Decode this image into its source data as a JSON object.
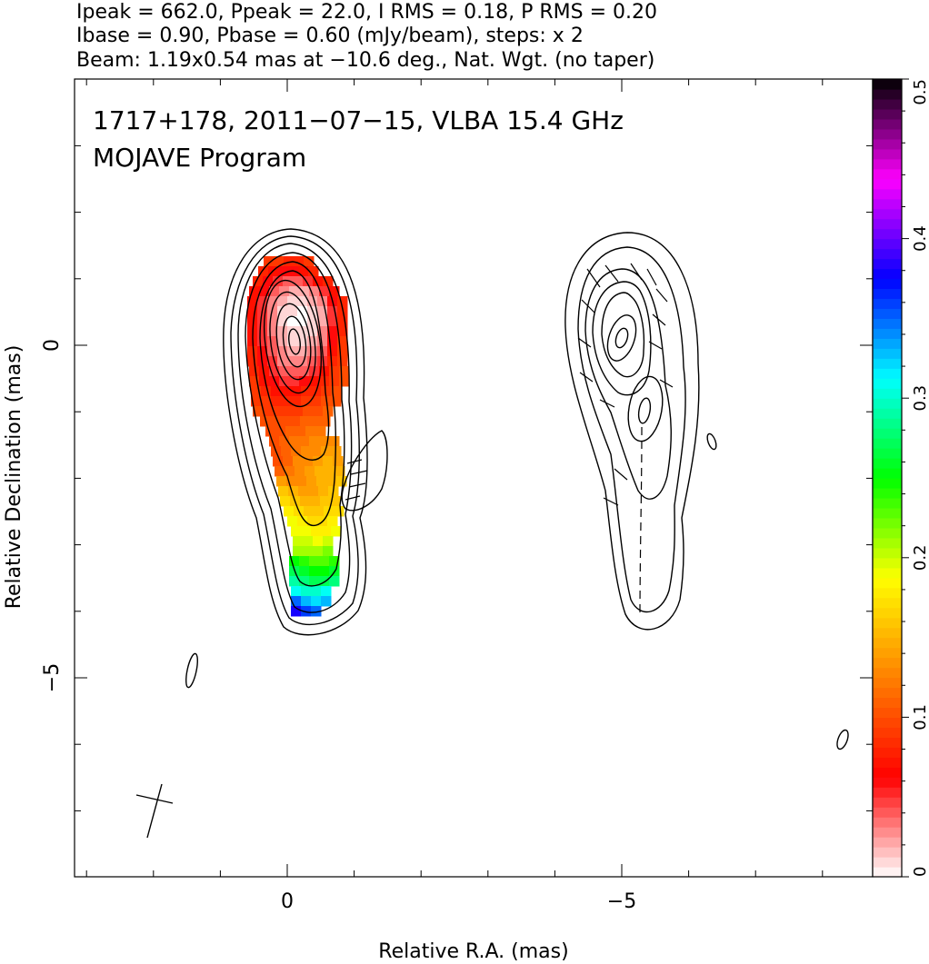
{
  "header": {
    "line1": "Ipeak = 662.0, Ppeak = 22.0, I RMS = 0.18, P RMS = 0.20",
    "line2": "Ibase = 0.90, Pbase = 0.60 (mJy/beam), steps: x 2",
    "line3": "Beam: 1.19x0.54 mas at −10.6 deg., Nat. Wgt. (no taper)"
  },
  "plot_title": {
    "line1": "1717+178, 2011−07−15, VLBA 15.4 GHz",
    "line2": "MOJAVE Program"
  },
  "chart_data": {
    "type": "heatmap",
    "xlabel": "Relative R.A. (mas)",
    "ylabel": "Relative Declination (mas)",
    "x_ticks": [
      {
        "value": 0,
        "label": "0"
      },
      {
        "value": -5,
        "label": "−5"
      }
    ],
    "y_ticks": [
      {
        "value": 0,
        "label": "0"
      },
      {
        "value": -5,
        "label": "−5"
      }
    ],
    "colorbar": {
      "min": 0,
      "max": 0.5,
      "ticks": [
        {
          "value": 0,
          "label": "0"
        },
        {
          "value": 0.1,
          "label": "0.1"
        },
        {
          "value": 0.2,
          "label": "0.2"
        },
        {
          "value": 0.3,
          "label": "0.3"
        },
        {
          "value": 0.4,
          "label": "0.4"
        },
        {
          "value": 0.5,
          "label": "0.5"
        }
      ],
      "colormap": [
        "#ffffff",
        "#ff0000",
        "#ff8000",
        "#ffff00",
        "#00ff00",
        "#00ffff",
        "#0000ff",
        "#ff00ff",
        "#000000"
      ]
    },
    "panels": [
      {
        "name": "total intensity with fractional polarization",
        "center_mas": [
          0,
          0
        ]
      },
      {
        "name": "polarized intensity with EVPA ticks",
        "center_mas": [
          -5,
          0
        ]
      }
    ],
    "beam": {
      "major_mas": 1.19,
      "minor_mas": 0.54,
      "pa_deg": -10.6
    },
    "ipeak_mJy_per_beam": 662.0,
    "ppeak_mJy_per_beam": 22.0,
    "contour_step_factor": 2
  }
}
